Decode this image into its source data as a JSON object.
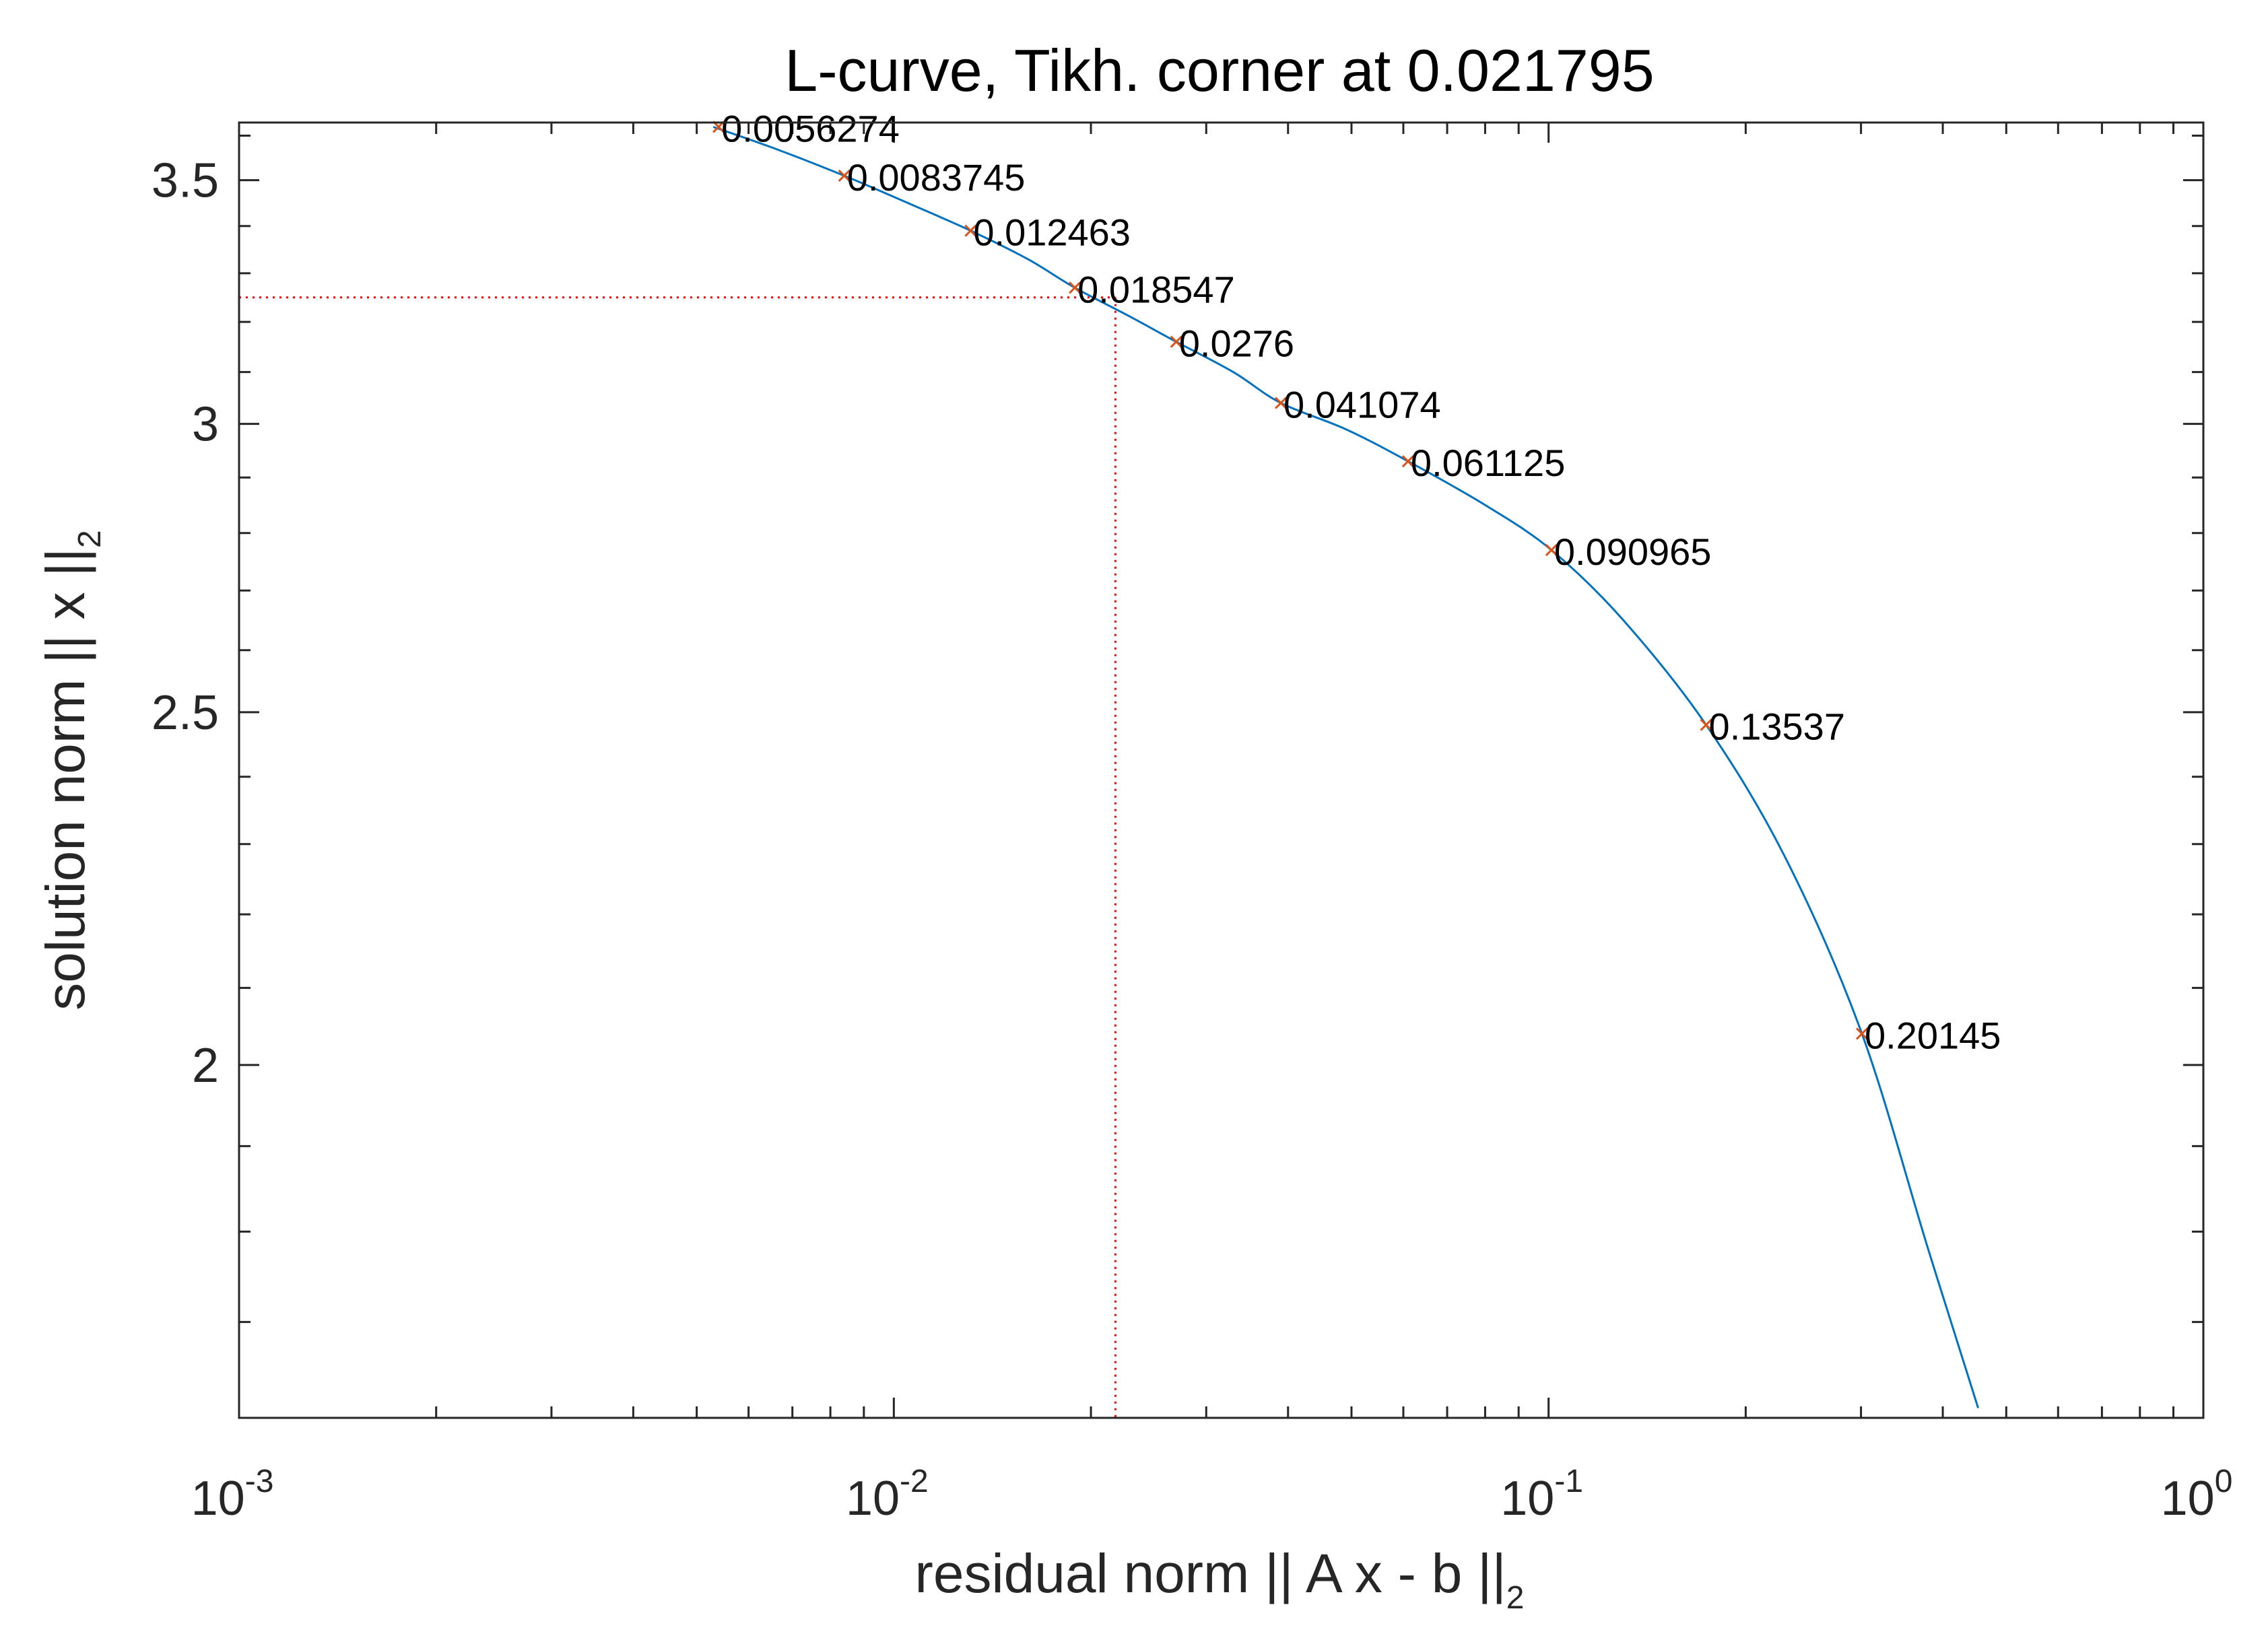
{
  "chart_data": {
    "type": "line",
    "title": "L-curve, Tikh. corner at 0.021795",
    "xlabel": {
      "main": "residual norm || A x - b ||",
      "subscript": "2"
    },
    "ylabel": {
      "main": "solution norm || x ||",
      "subscript": "2"
    },
    "xscale": "log",
    "yscale": "log",
    "xlim": [
      0.001,
      1
    ],
    "ylim": [
      1.6,
      3.63
    ],
    "grid": false,
    "x_ticks": [
      {
        "value": 0.001,
        "base": "10",
        "exponent": "-3"
      },
      {
        "value": 0.01,
        "base": "10",
        "exponent": "-2"
      },
      {
        "value": 0.1,
        "base": "10",
        "exponent": "-1"
      },
      {
        "value": 1,
        "base": "10",
        "exponent": "0"
      }
    ],
    "y_ticks": [
      {
        "value": 2,
        "label": "2"
      },
      {
        "value": 2.5,
        "label": "2.5"
      },
      {
        "value": 3,
        "label": "3"
      },
      {
        "value": 3.5,
        "label": "3.5"
      }
    ],
    "series": [
      {
        "color": "#0072bd",
        "x": [
          0.0053,
          0.0066,
          0.0084,
          0.0105,
          0.0131,
          0.016,
          0.0189,
          0.023,
          0.027,
          0.033,
          0.039,
          0.049,
          0.061,
          0.08,
          0.101,
          0.13,
          0.174,
          0.23,
          0.301,
          0.38,
          0.453
        ],
        "y": [
          3.62,
          3.57,
          3.51,
          3.45,
          3.39,
          3.33,
          3.27,
          3.21,
          3.16,
          3.1,
          3.04,
          2.99,
          2.93,
          2.85,
          2.77,
          2.65,
          2.48,
          2.28,
          2.04,
          1.78,
          1.61
        ]
      }
    ],
    "markers": {
      "color": "#d95319",
      "points": [
        {
          "x": 0.0054,
          "y": 3.62,
          "label": "0.0056274"
        },
        {
          "x": 0.0084,
          "y": 3.51,
          "label": "0.0083745"
        },
        {
          "x": 0.0131,
          "y": 3.39,
          "label": "0.012463"
        },
        {
          "x": 0.0189,
          "y": 3.27,
          "label": "0.018547"
        },
        {
          "x": 0.027,
          "y": 3.16,
          "label": "0.0276"
        },
        {
          "x": 0.039,
          "y": 3.04,
          "label": "0.041074"
        },
        {
          "x": 0.061,
          "y": 2.93,
          "label": "0.061125"
        },
        {
          "x": 0.101,
          "y": 2.77,
          "label": "0.090965"
        },
        {
          "x": 0.174,
          "y": 2.48,
          "label": "0.13537"
        },
        {
          "x": 0.301,
          "y": 2.04,
          "label": "0.20145"
        }
      ]
    },
    "corner": {
      "x": 0.0218,
      "y": 3.25,
      "color": "#ff0000",
      "style": "dotted"
    }
  }
}
